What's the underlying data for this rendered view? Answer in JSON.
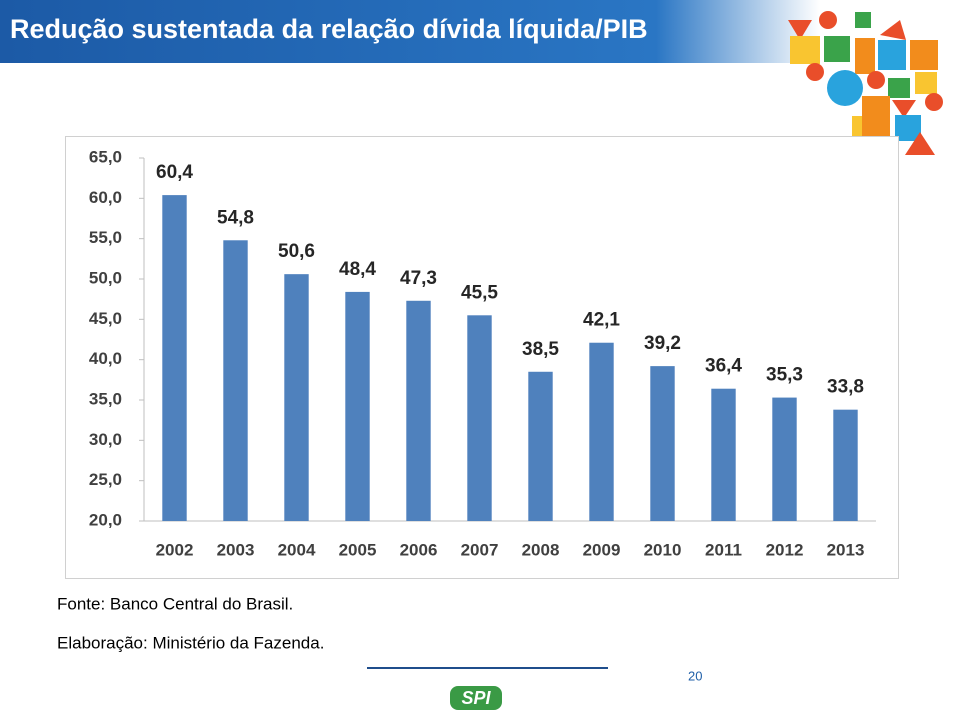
{
  "slide_title": "Redução sustentada da relação dívida líquida/PIB",
  "chart_data": {
    "type": "bar",
    "categories": [
      "2002",
      "2003",
      "2004",
      "2005",
      "2006",
      "2007",
      "2008",
      "2009",
      "2010",
      "2011",
      "2012",
      "2013"
    ],
    "values": [
      60.4,
      54.8,
      50.6,
      48.4,
      47.3,
      45.5,
      38.5,
      42.1,
      39.2,
      36.4,
      35.3,
      33.8
    ],
    "value_labels": [
      "60,4",
      "54,8",
      "50,6",
      "48,4",
      "47,3",
      "45,5",
      "38,5",
      "42,1",
      "39,2",
      "36,4",
      "35,3",
      "33,8"
    ],
    "color": "#4f81bd",
    "ylim": [
      20,
      65
    ],
    "yticks": [
      {
        "value": 20,
        "label": "20,0"
      },
      {
        "value": 25,
        "label": "25,0"
      },
      {
        "value": 30,
        "label": "30,0"
      },
      {
        "value": 35,
        "label": "35,0"
      },
      {
        "value": 40,
        "label": "40,0"
      },
      {
        "value": 45,
        "label": "45,0"
      },
      {
        "value": 50,
        "label": "50,0"
      },
      {
        "value": 55,
        "label": "55,0"
      },
      {
        "value": 60,
        "label": "60,0"
      },
      {
        "value": 65,
        "label": "65,0"
      }
    ],
    "grid": false
  },
  "notes": [
    "Fonte: Banco Central do Brasil.",
    "Elaboração: Ministério da Fazenda."
  ],
  "page_number": "20",
  "logo": "SPI"
}
